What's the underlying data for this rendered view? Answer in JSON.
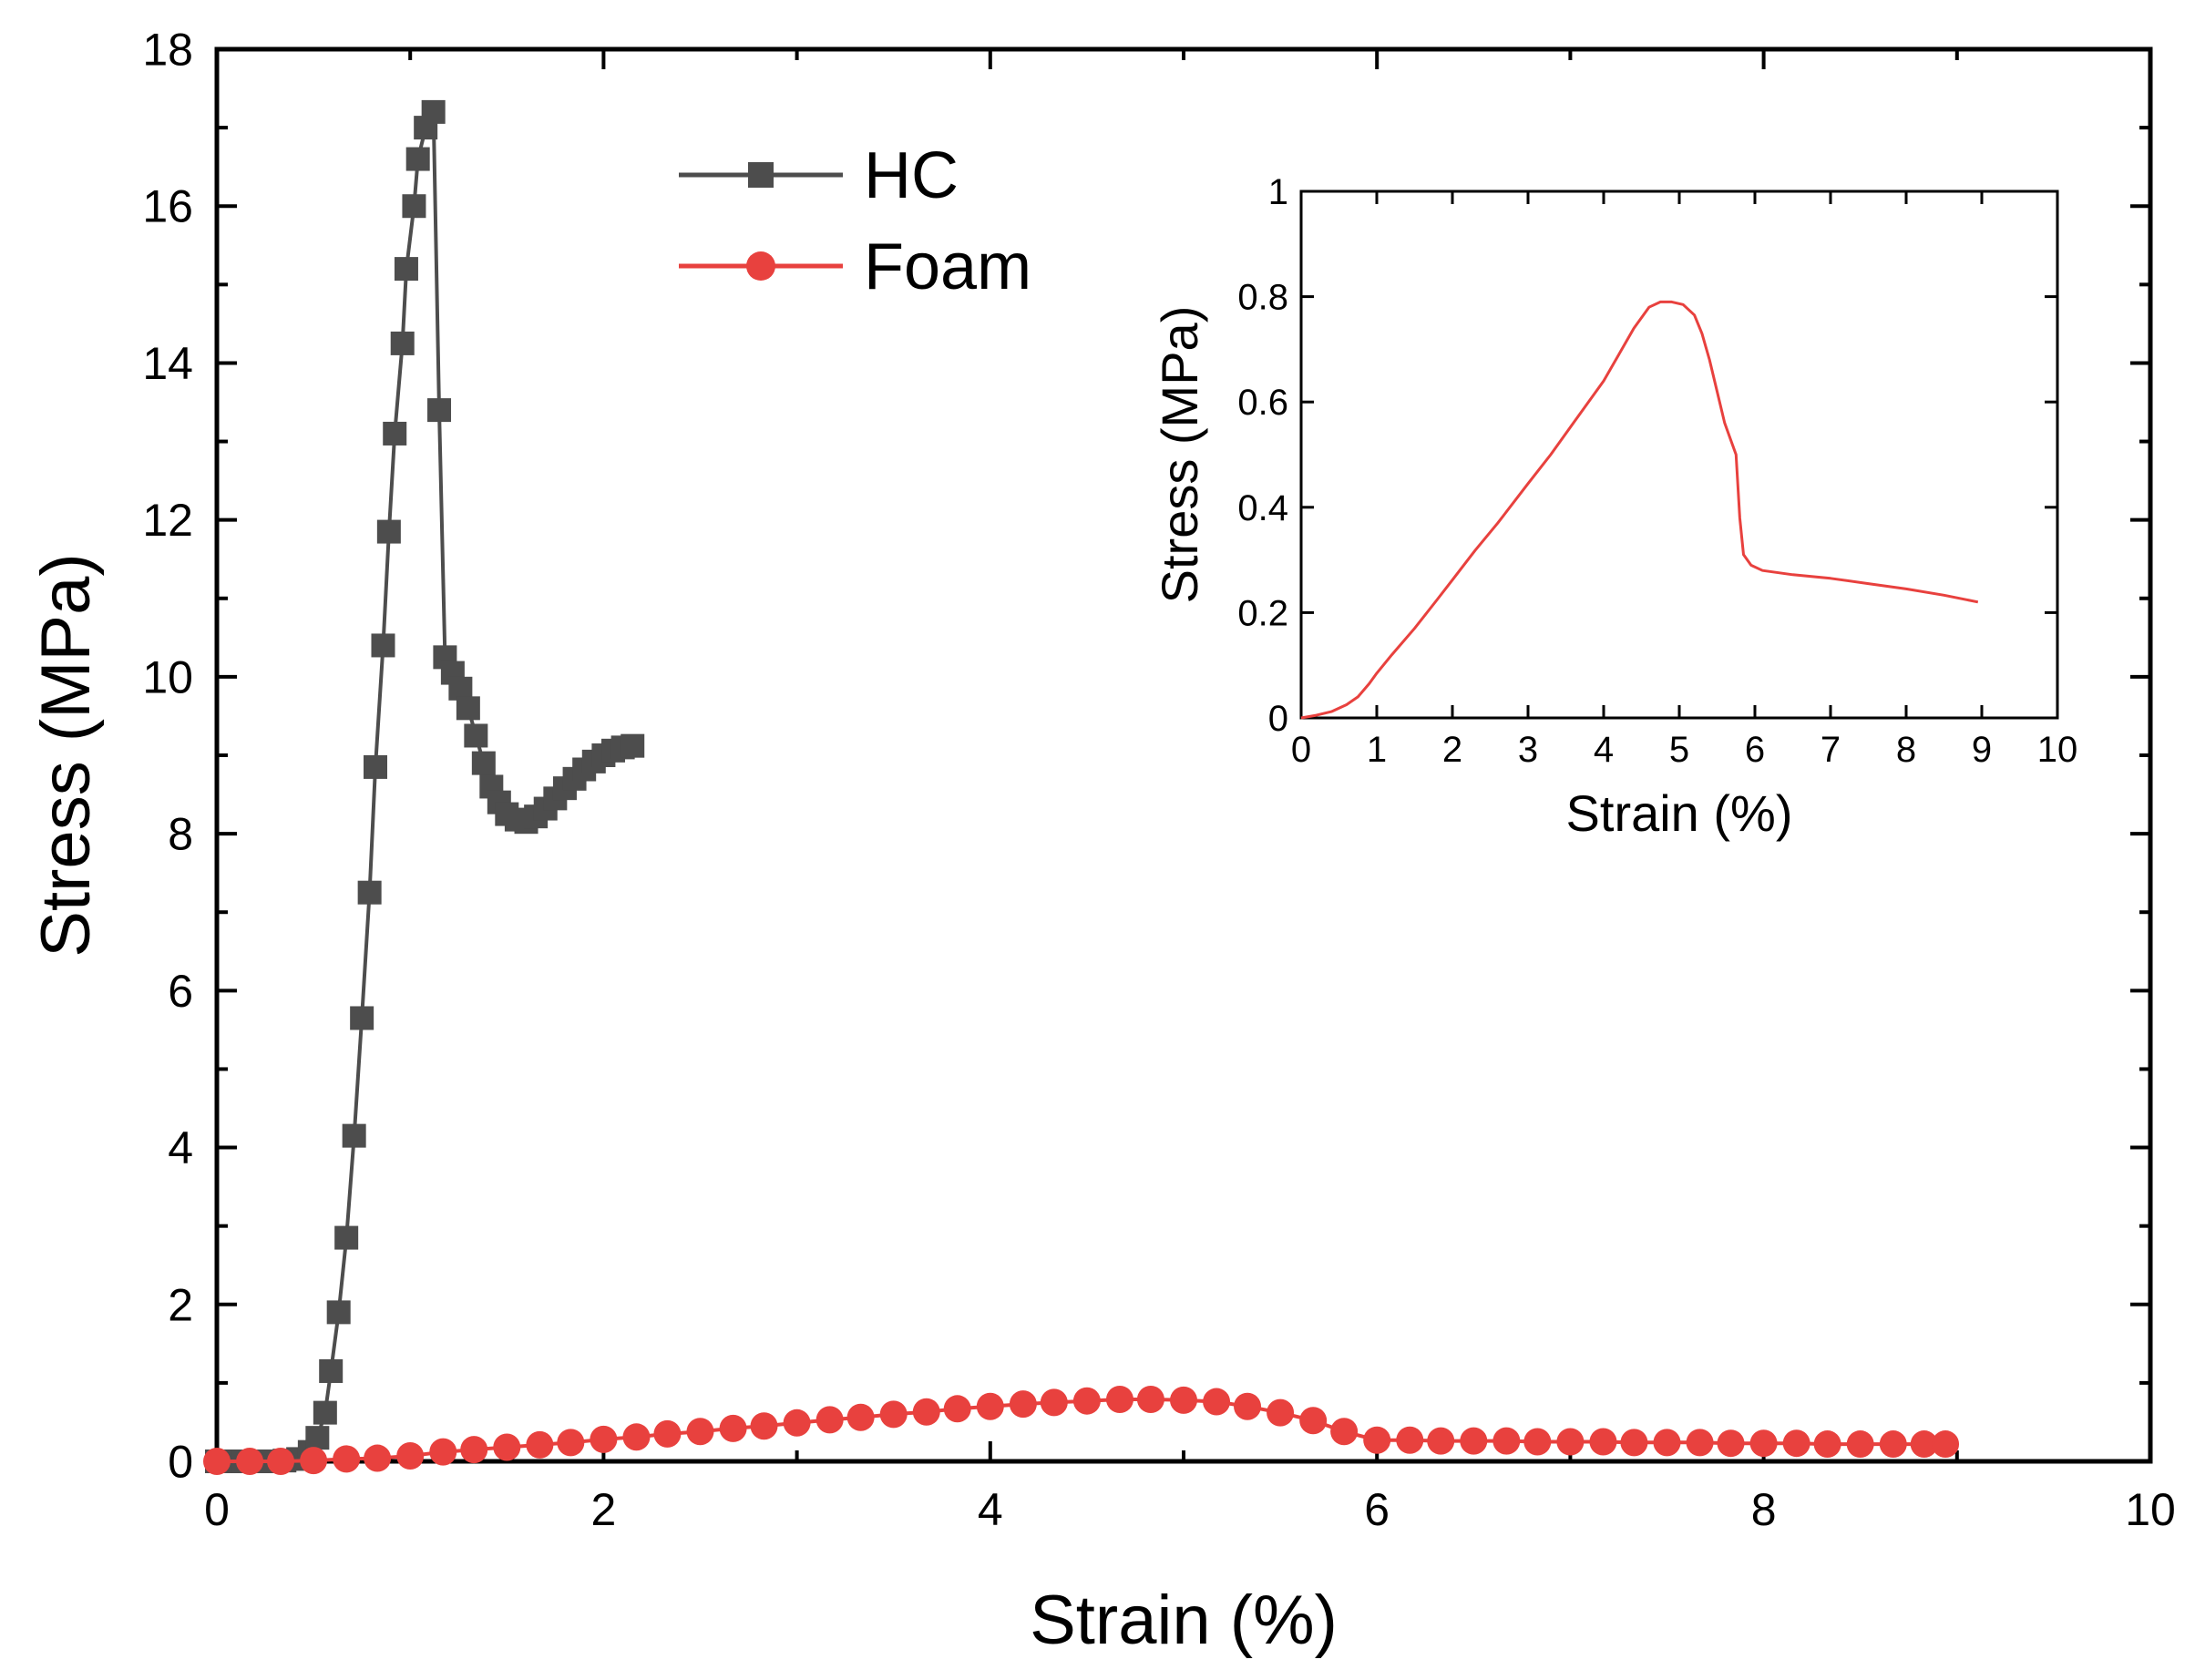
{
  "chart_data": [
    {
      "id": "main",
      "type": "line",
      "title": "",
      "xlabel": "Strain (%)",
      "ylabel": "Stress (MPa)",
      "xlim": [
        0,
        10
      ],
      "ylim": [
        0,
        18
      ],
      "xticks": [
        0,
        2,
        4,
        6,
        8,
        10
      ],
      "yticks": [
        0,
        2,
        4,
        6,
        8,
        10,
        12,
        14,
        16,
        18
      ],
      "legend_position": "top-center",
      "series": [
        {
          "name": "HC",
          "color": "#4d4d4d",
          "marker": "square",
          "points": [
            [
              0.0,
              0.0
            ],
            [
              0.07,
              0.0
            ],
            [
              0.14,
              0.0
            ],
            [
              0.21,
              0.0
            ],
            [
              0.28,
              0.0
            ],
            [
              0.35,
              0.01
            ],
            [
              0.42,
              0.03
            ],
            [
              0.48,
              0.12
            ],
            [
              0.52,
              0.3
            ],
            [
              0.56,
              0.62
            ],
            [
              0.59,
              1.15
            ],
            [
              0.63,
              1.9
            ],
            [
              0.67,
              2.85
            ],
            [
              0.71,
              4.15
            ],
            [
              0.75,
              5.65
            ],
            [
              0.79,
              7.25
            ],
            [
              0.82,
              8.85
            ],
            [
              0.86,
              10.4
            ],
            [
              0.89,
              11.85
            ],
            [
              0.92,
              13.1
            ],
            [
              0.96,
              14.25
            ],
            [
              0.98,
              15.2
            ],
            [
              1.02,
              16.0
            ],
            [
              1.04,
              16.6
            ],
            [
              1.08,
              17.0
            ],
            [
              1.12,
              17.2
            ],
            [
              1.15,
              13.4
            ],
            [
              1.18,
              10.25
            ],
            [
              1.22,
              10.05
            ],
            [
              1.26,
              9.85
            ],
            [
              1.3,
              9.6
            ],
            [
              1.34,
              9.25
            ],
            [
              1.38,
              8.9
            ],
            [
              1.42,
              8.6
            ],
            [
              1.46,
              8.4
            ],
            [
              1.5,
              8.25
            ],
            [
              1.55,
              8.18
            ],
            [
              1.6,
              8.15
            ],
            [
              1.65,
              8.22
            ],
            [
              1.7,
              8.32
            ],
            [
              1.75,
              8.45
            ],
            [
              1.8,
              8.58
            ],
            [
              1.85,
              8.7
            ],
            [
              1.9,
              8.82
            ],
            [
              1.95,
              8.92
            ],
            [
              2.0,
              9.0
            ],
            [
              2.05,
              9.06
            ],
            [
              2.1,
              9.1
            ],
            [
              2.15,
              9.12
            ]
          ]
        },
        {
          "name": "Foam",
          "color": "#e8413e",
          "marker": "circle",
          "points": [
            [
              0.0,
              0.0
            ],
            [
              0.17,
              0.0
            ],
            [
              0.33,
              0.0
            ],
            [
              0.5,
              0.01
            ],
            [
              0.67,
              0.03
            ],
            [
              0.83,
              0.04
            ],
            [
              1.0,
              0.07
            ],
            [
              1.17,
              0.12
            ],
            [
              1.33,
              0.15
            ],
            [
              1.5,
              0.18
            ],
            [
              1.67,
              0.21
            ],
            [
              1.83,
              0.24
            ],
            [
              2.0,
              0.28
            ],
            [
              2.17,
              0.31
            ],
            [
              2.33,
              0.35
            ],
            [
              2.5,
              0.38
            ],
            [
              2.67,
              0.42
            ],
            [
              2.83,
              0.45
            ],
            [
              3.0,
              0.49
            ],
            [
              3.17,
              0.53
            ],
            [
              3.33,
              0.56
            ],
            [
              3.5,
              0.6
            ],
            [
              3.67,
              0.63
            ],
            [
              3.83,
              0.67
            ],
            [
              4.0,
              0.7
            ],
            [
              4.17,
              0.73
            ],
            [
              4.33,
              0.75
            ],
            [
              4.5,
              0.77
            ],
            [
              4.67,
              0.79
            ],
            [
              4.83,
              0.79
            ],
            [
              5.0,
              0.78
            ],
            [
              5.17,
              0.76
            ],
            [
              5.33,
              0.7
            ],
            [
              5.5,
              0.62
            ],
            [
              5.67,
              0.52
            ],
            [
              5.83,
              0.38
            ],
            [
              6.0,
              0.27
            ],
            [
              6.17,
              0.27
            ],
            [
              6.33,
              0.26
            ],
            [
              6.5,
              0.26
            ],
            [
              6.67,
              0.26
            ],
            [
              6.83,
              0.25
            ],
            [
              7.0,
              0.25
            ],
            [
              7.17,
              0.25
            ],
            [
              7.33,
              0.24
            ],
            [
              7.5,
              0.24
            ],
            [
              7.67,
              0.24
            ],
            [
              7.83,
              0.23
            ],
            [
              8.0,
              0.23
            ],
            [
              8.17,
              0.23
            ],
            [
              8.33,
              0.22
            ],
            [
              8.5,
              0.22
            ],
            [
              8.67,
              0.22
            ],
            [
              8.83,
              0.22
            ],
            [
              8.94,
              0.22
            ]
          ]
        }
      ]
    },
    {
      "id": "inset",
      "type": "line",
      "title": "",
      "xlabel": "Strain (%)",
      "ylabel": "Stress (MPa)",
      "xlim": [
        0,
        10
      ],
      "ylim": [
        0,
        1
      ],
      "xticks": [
        0,
        1,
        2,
        3,
        4,
        5,
        6,
        7,
        8,
        9,
        10
      ],
      "yticks": [
        0,
        0.2,
        0.4,
        0.6,
        0.8,
        1
      ],
      "ytick_labels": [
        "0",
        "0.2",
        "0.4",
        "0.6",
        "0.8",
        "1"
      ],
      "series": [
        {
          "name": "Foam",
          "color": "#e8413e",
          "marker": "none",
          "points": [
            [
              0.0,
              0.0
            ],
            [
              0.2,
              0.005
            ],
            [
              0.4,
              0.012
            ],
            [
              0.6,
              0.025
            ],
            [
              0.75,
              0.04
            ],
            [
              0.9,
              0.065
            ],
            [
              1.0,
              0.085
            ],
            [
              1.2,
              0.12
            ],
            [
              1.5,
              0.17
            ],
            [
              1.8,
              0.225
            ],
            [
              2.0,
              0.262
            ],
            [
              2.3,
              0.318
            ],
            [
              2.6,
              0.37
            ],
            [
              3.0,
              0.445
            ],
            [
              3.3,
              0.5
            ],
            [
              3.6,
              0.56
            ],
            [
              4.0,
              0.64
            ],
            [
              4.2,
              0.69
            ],
            [
              4.4,
              0.74
            ],
            [
              4.6,
              0.78
            ],
            [
              4.75,
              0.79
            ],
            [
              4.9,
              0.79
            ],
            [
              5.05,
              0.785
            ],
            [
              5.2,
              0.765
            ],
            [
              5.3,
              0.73
            ],
            [
              5.4,
              0.68
            ],
            [
              5.5,
              0.62
            ],
            [
              5.6,
              0.56
            ],
            [
              5.7,
              0.52
            ],
            [
              5.75,
              0.5
            ],
            [
              5.8,
              0.38
            ],
            [
              5.85,
              0.31
            ],
            [
              5.95,
              0.29
            ],
            [
              6.1,
              0.28
            ],
            [
              6.5,
              0.272
            ],
            [
              7.0,
              0.265
            ],
            [
              7.5,
              0.255
            ],
            [
              8.0,
              0.245
            ],
            [
              8.5,
              0.233
            ],
            [
              8.95,
              0.22
            ]
          ]
        }
      ]
    }
  ]
}
